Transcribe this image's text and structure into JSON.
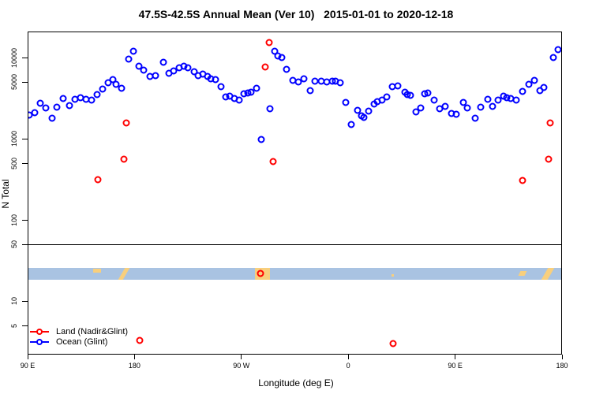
{
  "chart_data": {
    "type": "scatter",
    "title": "47.5S-42.5S Annual Mean (Ver 10)   2015-01-01 to 2020-12-18",
    "xlabel": "Longitude (deg E)",
    "ylabel": "N Total",
    "x_axis": {
      "min": 90,
      "max": 540,
      "ticks": [
        {
          "value": 90,
          "label": "90 E"
        },
        {
          "value": 180,
          "label": "180"
        },
        {
          "value": 270,
          "label": "90 W"
        },
        {
          "value": 360,
          "label": "0"
        },
        {
          "value": 450,
          "label": "90 E"
        },
        {
          "value": 540,
          "label": "180"
        }
      ]
    },
    "y_axis": {
      "scale": "log",
      "ticks": [
        10000,
        5000,
        1000,
        500,
        100,
        50,
        10,
        5
      ],
      "approx_range": [
        2,
        23000
      ]
    },
    "reference_line": 50,
    "grid": "off",
    "legend_position": "bottom-left",
    "series": [
      {
        "name": "Land (Nadir&Glint)",
        "color": "#ff0000",
        "points": [
          [
            149.2,
            313
          ],
          [
            171.1,
            560
          ],
          [
            173.1,
            1560
          ],
          [
            184.4,
            3.3
          ],
          [
            286.1,
            22
          ],
          [
            289.9,
            7650
          ],
          [
            293.4,
            15300
          ],
          [
            296.7,
            522
          ],
          [
            397.7,
            3.0
          ],
          [
            506.8,
            306
          ],
          [
            528.7,
            560
          ],
          [
            530.1,
            1560
          ]
        ]
      },
      {
        "name": "Ocean (Glint)",
        "color": "#0000ff",
        "points": [
          [
            91.1,
            1960
          ],
          [
            96.2,
            2100
          ],
          [
            100.6,
            2750
          ],
          [
            105.5,
            2410
          ],
          [
            110.6,
            1790
          ],
          [
            114.8,
            2450
          ],
          [
            119.9,
            3130
          ],
          [
            125.0,
            2560
          ],
          [
            129.9,
            3060
          ],
          [
            134.3,
            3200
          ],
          [
            139.2,
            3060
          ],
          [
            143.8,
            2970
          ],
          [
            148.7,
            3500
          ],
          [
            153.1,
            4120
          ],
          [
            157.6,
            4900
          ],
          [
            161.6,
            5380
          ],
          [
            164.7,
            4650
          ],
          [
            169.3,
            4210
          ],
          [
            174.9,
            9570
          ],
          [
            179.3,
            11970
          ],
          [
            183.7,
            7820
          ],
          [
            187.5,
            6940
          ],
          [
            193.0,
            5890
          ],
          [
            197.9,
            5980
          ],
          [
            204.1,
            8690
          ],
          [
            209.0,
            6440
          ],
          [
            213.0,
            6830
          ],
          [
            217.4,
            7480
          ],
          [
            221.8,
            7820
          ],
          [
            225.1,
            7480
          ],
          [
            230.3,
            6730
          ],
          [
            233.4,
            5980
          ],
          [
            237.4,
            6250
          ],
          [
            241.4,
            5810
          ],
          [
            244.4,
            5470
          ],
          [
            248.4,
            5380
          ],
          [
            252.9,
            4380
          ],
          [
            256.9,
            3290
          ],
          [
            260.0,
            3370
          ],
          [
            264.0,
            3130
          ],
          [
            268.0,
            2970
          ],
          [
            272.3,
            3550
          ],
          [
            275.5,
            3630
          ],
          [
            278.3,
            3720
          ],
          [
            282.8,
            4210
          ],
          [
            286.8,
            984
          ],
          [
            294.3,
            2320
          ],
          [
            297.9,
            11970
          ],
          [
            300.9,
            10520
          ],
          [
            303.8,
            9930
          ],
          [
            308.2,
            7190
          ],
          [
            313.3,
            5260
          ],
          [
            317.8,
            4970
          ],
          [
            322.6,
            5470
          ],
          [
            328.2,
            3910
          ],
          [
            331.9,
            5150
          ],
          [
            337.5,
            5080
          ],
          [
            342.1,
            4970
          ],
          [
            346.4,
            5150
          ],
          [
            349.2,
            5150
          ],
          [
            353.2,
            4900
          ],
          [
            357.7,
            2800
          ],
          [
            362.5,
            1480
          ],
          [
            367.6,
            2240
          ],
          [
            371.3,
            1900
          ],
          [
            373.2,
            1810
          ],
          [
            377.0,
            2190
          ],
          [
            381.8,
            2690
          ],
          [
            384.7,
            2840
          ],
          [
            388.5,
            2970
          ],
          [
            392.4,
            3290
          ],
          [
            396.9,
            4380
          ],
          [
            402.0,
            4470
          ],
          [
            407.5,
            3770
          ],
          [
            409.7,
            3500
          ],
          [
            412.4,
            3420
          ],
          [
            416.8,
            2150
          ],
          [
            420.8,
            2380
          ],
          [
            424.5,
            3550
          ],
          [
            426.8,
            3630
          ],
          [
            432.3,
            2970
          ],
          [
            436.8,
            2320
          ],
          [
            441.6,
            2500
          ],
          [
            446.7,
            2050
          ],
          [
            451.1,
            2000
          ],
          [
            457.1,
            2800
          ],
          [
            460.2,
            2390
          ],
          [
            466.7,
            1790
          ],
          [
            471.5,
            2460
          ],
          [
            477.7,
            3080
          ],
          [
            481.5,
            2500
          ],
          [
            486.0,
            2970
          ],
          [
            491.0,
            3370
          ],
          [
            493.3,
            3180
          ],
          [
            497.0,
            3130
          ],
          [
            501.5,
            3010
          ],
          [
            506.8,
            3830
          ],
          [
            512.1,
            4680
          ],
          [
            516.6,
            5260
          ],
          [
            521.4,
            3910
          ],
          [
            525.0,
            4310
          ],
          [
            532.5,
            9930
          ],
          [
            536.5,
            12590
          ]
        ]
      }
    ],
    "map_band": {
      "description": "latitude band map strip 47.5S-42.5S",
      "ocean_color": "#a9c3e2",
      "land_color": "#f8cf7d",
      "land_patches": [
        {
          "lon1": 145.2,
          "lon2": 151.8,
          "shape": "dash-top",
          "label": "tasmania"
        },
        {
          "lon1": 167.8,
          "lon2": 175.1,
          "shape": "slash",
          "label": "new-zealand"
        },
        {
          "lon1": 281.4,
          "lon2": 294.1,
          "shape": "block",
          "label": "south-america"
        },
        {
          "lon1": 396.5,
          "lon2": 398.8,
          "shape": "dot",
          "label": "prince-edward-is"
        },
        {
          "lon1": 504.0,
          "lon2": 509.0,
          "shape": "dash-mid",
          "label": "tasmania-2"
        },
        {
          "lon1": 523.8,
          "lon2": 534.0,
          "shape": "slash",
          "label": "new-zealand-2"
        }
      ]
    }
  }
}
